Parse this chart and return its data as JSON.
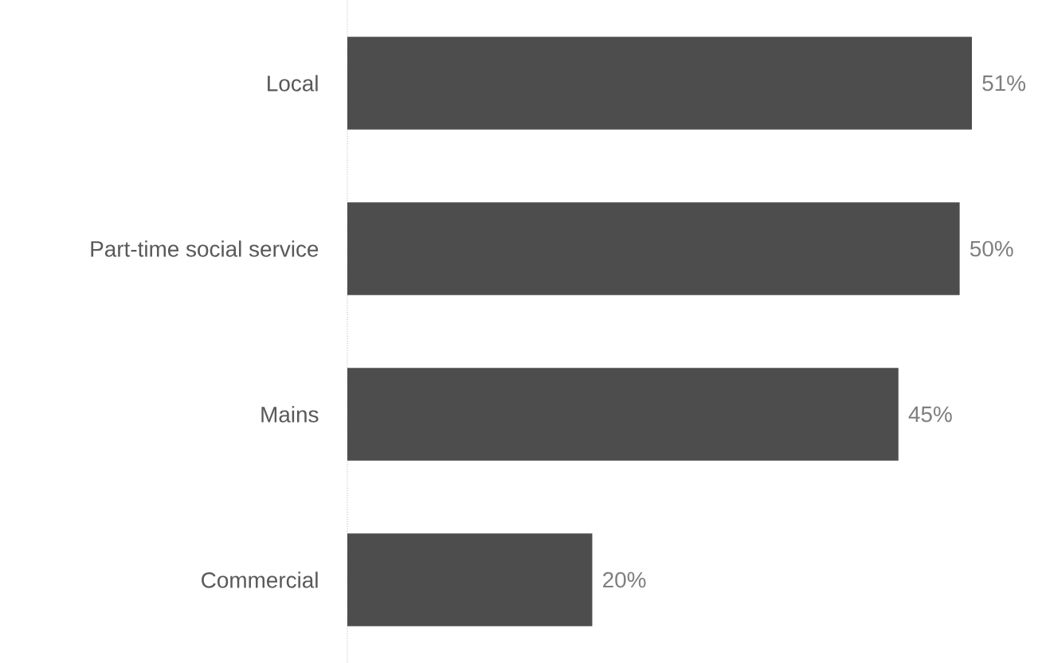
{
  "chart_data": {
    "type": "bar",
    "orientation": "horizontal",
    "categories": [
      "Local",
      "Part-time social service",
      "Mains",
      "Commercial"
    ],
    "values": [
      51,
      50,
      45,
      20
    ],
    "value_labels": [
      "51%",
      "50%",
      "45%",
      "20%"
    ],
    "color": "#4d4d4d"
  }
}
